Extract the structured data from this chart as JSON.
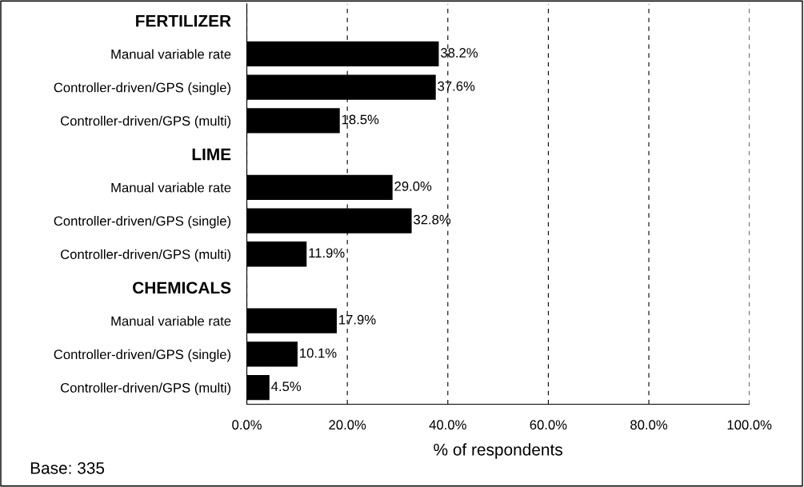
{
  "chart_data": {
    "type": "bar",
    "orientation": "horizontal",
    "categories": [
      "FERTILIZER",
      "Manual variable rate",
      "Controller-driven/GPS (single)",
      "Controller-driven/GPS (multi)",
      "LIME",
      "Manual variable rate",
      "Controller-driven/GPS (single)",
      "Controller-driven/GPS (multi)",
      "CHEMICALS",
      "Manual variable rate",
      "Controller-driven/GPS (single)",
      "Controller-driven/GPS (multi)"
    ],
    "values": [
      null,
      38.2,
      37.6,
      18.5,
      null,
      29.0,
      32.8,
      11.9,
      null,
      17.9,
      10.1,
      4.5
    ],
    "value_labels": [
      null,
      "38.2%",
      "37.6%",
      "18.5%",
      null,
      "29.0%",
      "32.8%",
      "11.9%",
      null,
      "17.9%",
      "10.1%",
      "4.5%"
    ],
    "color": "#000000",
    "xlim": [
      0,
      100
    ],
    "xticks": [
      {
        "value": 0,
        "label": "0.0%"
      },
      {
        "value": 20,
        "label": "20.0%"
      },
      {
        "value": 40,
        "label": "40.0%"
      },
      {
        "value": 60,
        "label": "60.0%"
      },
      {
        "value": 80,
        "label": "80.0%"
      },
      {
        "value": 100,
        "label": "100.0%"
      }
    ],
    "xlabel": "% of respondents",
    "grid": "x",
    "annotations": [
      "Base: 335"
    ]
  }
}
